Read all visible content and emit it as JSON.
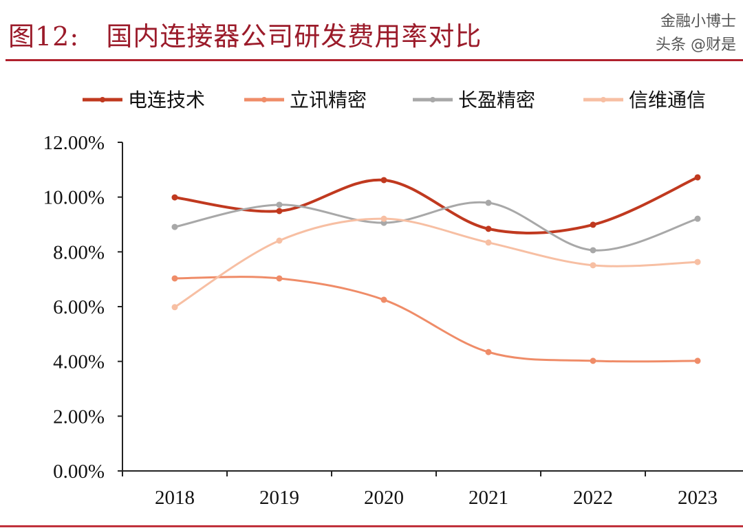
{
  "title": "图12:   国内连接器公司研发费用率对比",
  "watermark": [
    "金融小博士",
    "头条 @财是"
  ],
  "chart_data": {
    "type": "line",
    "title": "图12:   国内连接器公司研发费用率对比",
    "categories": [
      "2018",
      "2019",
      "2020",
      "2021",
      "2022",
      "2023"
    ],
    "ylim": [
      0,
      12
    ],
    "yticks": [
      "0.00%",
      "2.00%",
      "4.00%",
      "6.00%",
      "8.00%",
      "10.00%",
      "12.00%"
    ],
    "grid": false,
    "legend_position": "top",
    "smooth": true,
    "series": [
      {
        "name": "电连技术",
        "color": "#c0391f",
        "values": [
          9.99,
          9.49,
          10.62,
          8.84,
          8.99,
          10.72
        ]
      },
      {
        "name": "立讯精密",
        "color": "#ef8c68",
        "values": [
          7.03,
          7.03,
          6.25,
          4.34,
          4.02,
          4.02
        ]
      },
      {
        "name": "长盈精密",
        "color": "#a8a8a8",
        "values": [
          8.91,
          9.72,
          9.06,
          9.79,
          8.06,
          9.21
        ]
      },
      {
        "name": "信维通信",
        "color": "#f7bfa3",
        "values": [
          5.98,
          8.41,
          9.21,
          8.34,
          7.51,
          7.63
        ]
      }
    ]
  }
}
